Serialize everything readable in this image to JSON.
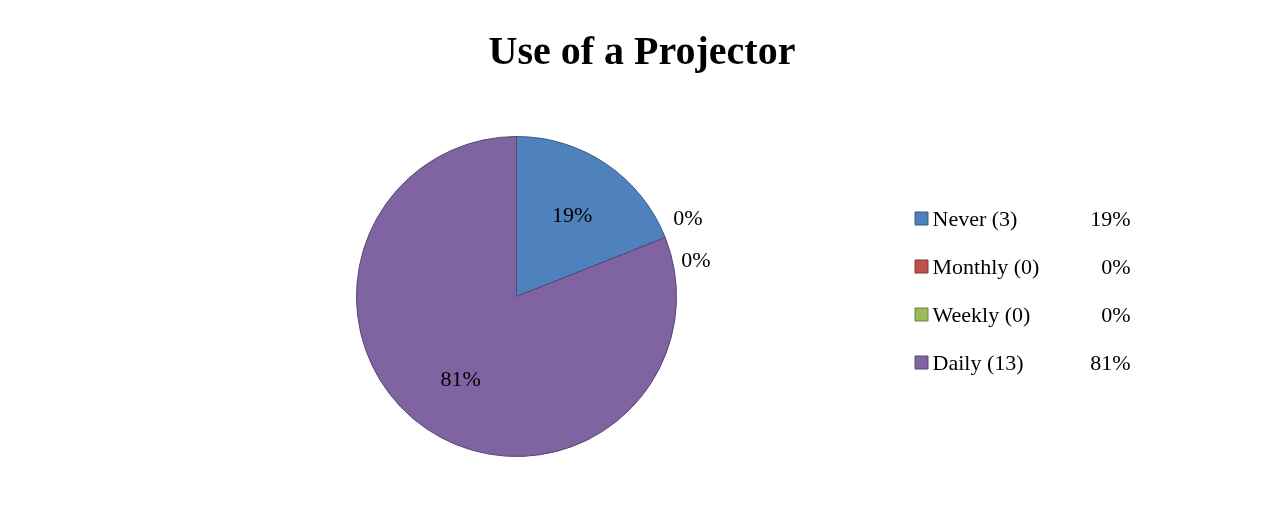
{
  "chart_data": {
    "type": "pie",
    "title": "Use of a Projector",
    "categories": [
      "Never (3)",
      "Monthly (0)",
      "Weekly (0)",
      "Daily (13)"
    ],
    "values": [
      19,
      0,
      0,
      81
    ],
    "colors": [
      "#4f81bd",
      "#c0504d",
      "#9bbb59",
      "#8064a2"
    ],
    "value_labels": [
      "19%",
      "0%",
      "0%",
      "81%"
    ],
    "legend": "right"
  }
}
